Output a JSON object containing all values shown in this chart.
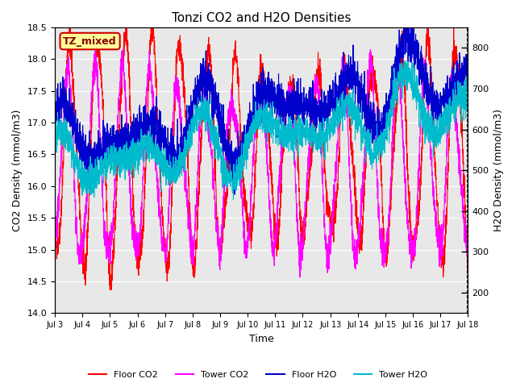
{
  "title": "Tonzi CO2 and H2O Densities",
  "xlabel": "Time",
  "ylabel_left": "CO2 Density (mmol/m3)",
  "ylabel_right": "H2O Density (mmol/m3)",
  "ylim_left": [
    14.0,
    18.5
  ],
  "ylim_right": [
    150,
    850
  ],
  "xtick_labels": [
    "Jul 3",
    "Jul 4",
    "Jul 5",
    "Jul 6",
    "Jul 7",
    "Jul 8",
    "Jul 9",
    "Jul 10",
    "Jul 11",
    "Jul 12",
    "Jul 13",
    "Jul 14",
    "Jul 15",
    "Jul 16",
    "Jul 17",
    "Jul 18"
  ],
  "annotation_text": "TZ_mixed",
  "annotation_facecolor": "#FFFF99",
  "annotation_edgecolor": "#CC0000",
  "colors": {
    "floor_co2": "#FF0000",
    "tower_co2": "#FF00FF",
    "floor_h2o": "#0000CC",
    "tower_h2o": "#00BBCC"
  },
  "legend_labels": [
    "Floor CO2",
    "Tower CO2",
    "Floor H2O",
    "Tower H2O"
  ],
  "bg_color": "#E8E8E8",
  "figsize": [
    6.4,
    4.8
  ],
  "dpi": 100
}
